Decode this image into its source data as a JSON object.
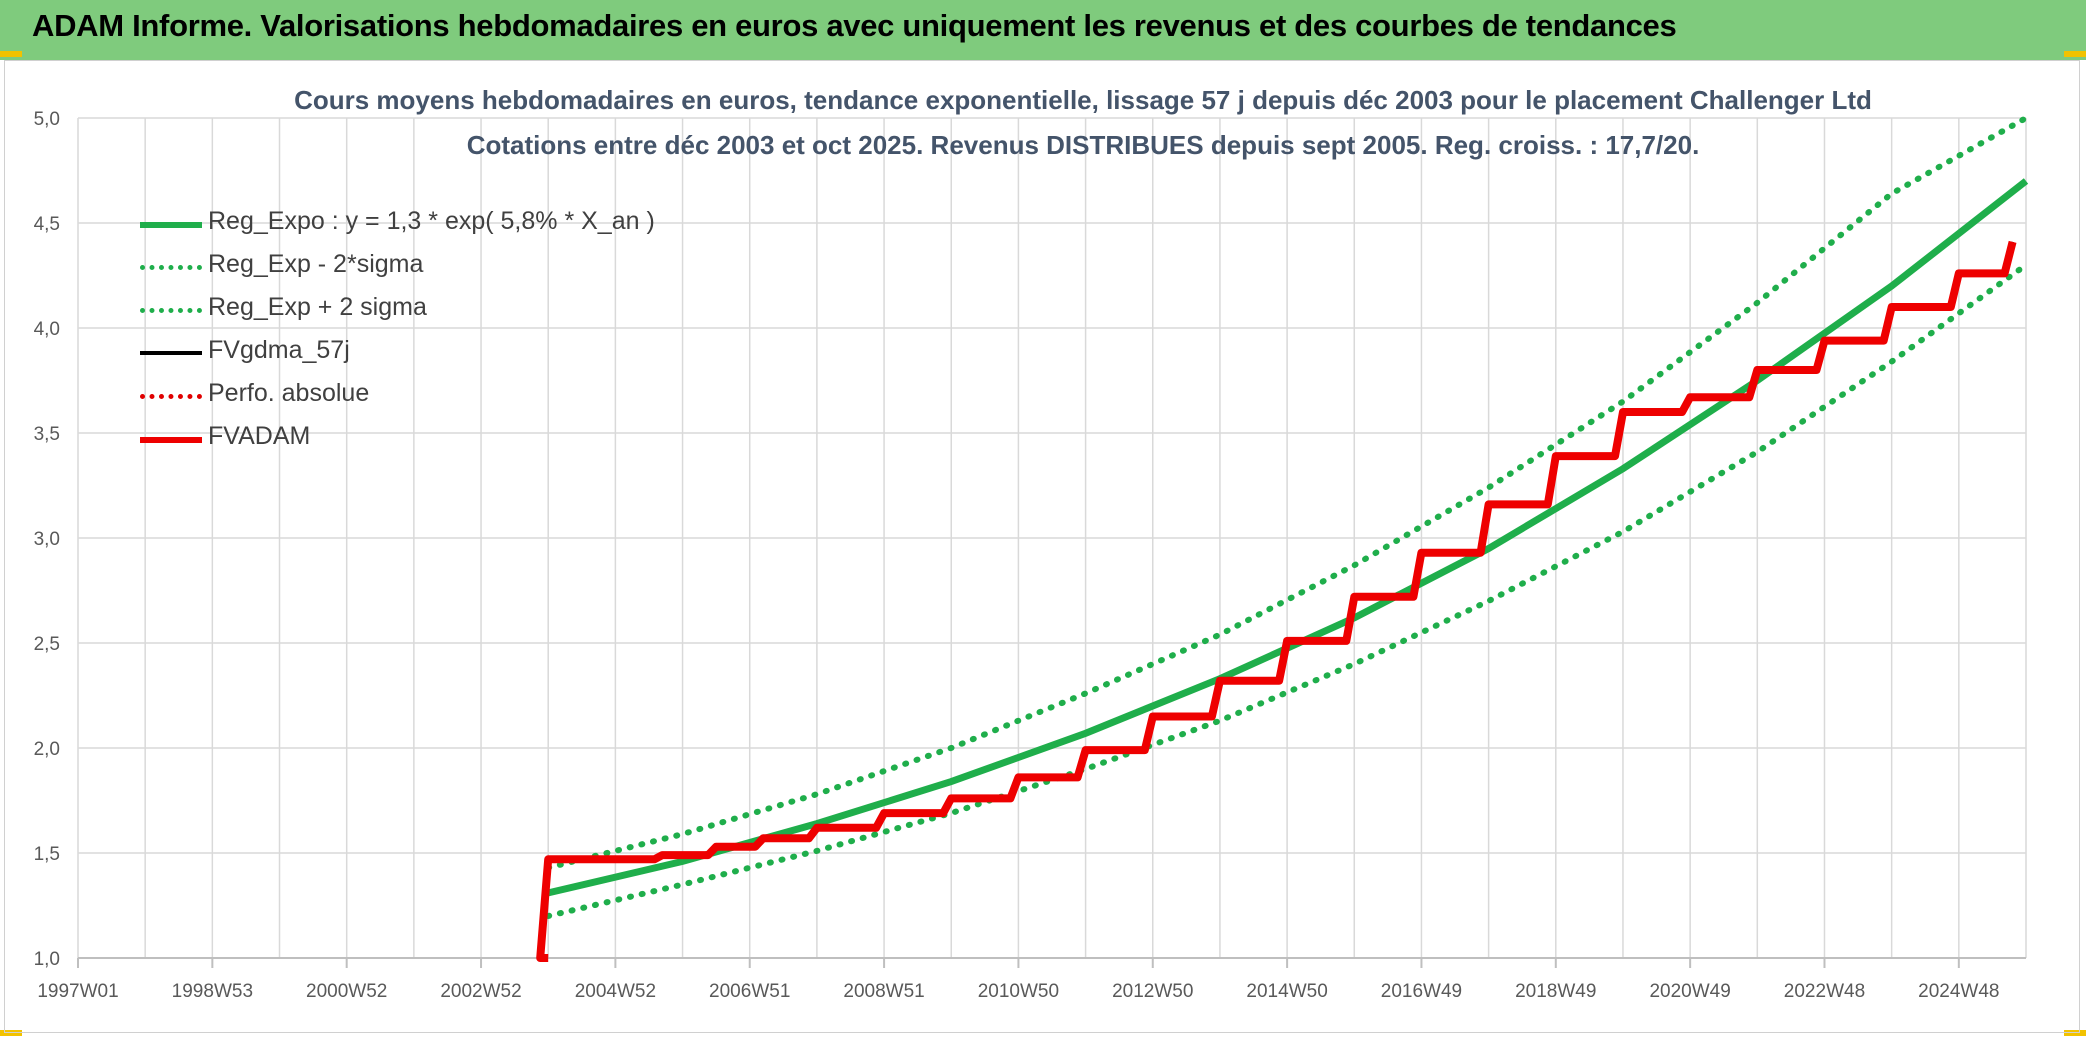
{
  "banner": {
    "title": "ADAM Informe. Valorisations hebdomadaires en euros avec uniquement les revenus et des courbes de tendances"
  },
  "chart_title": {
    "line1": "Cours moyens hebdomadaires en euros, tendance exponentielle, lissage 57 j depuis déc 2003 pour le placement Challenger Ltd",
    "line2": "Cotations entre déc 2003 et oct 2025. Revenus DISTRIBUES depuis sept 2005. Reg. croiss. : 17,7/20."
  },
  "legend": [
    {
      "label": "Reg_Expo : y = 1,3 * exp( 5,8% *  X_an )",
      "color": "#1fae4b",
      "style": "solid-thick"
    },
    {
      "label": "Reg_Exp - 2*sigma",
      "color": "#1fae4b",
      "style": "dotted"
    },
    {
      "label": "Reg_Exp + 2 sigma",
      "color": "#1fae4b",
      "style": "dotted"
    },
    {
      "label": "FVgdma_57j",
      "color": "#000000",
      "style": "solid"
    },
    {
      "label": "Perfo. absolue",
      "color": "#e00000",
      "style": "dotted"
    },
    {
      "label": "FVADAM",
      "color": "#ee0000",
      "style": "solid-thick"
    }
  ],
  "chart_data": {
    "type": "line",
    "xlim": [
      1997.0,
      2026.0
    ],
    "ylim": [
      1.0,
      5.0
    ],
    "y_ticks": [
      "1,0",
      "1,5",
      "2,0",
      "2,5",
      "3,0",
      "3,5",
      "4,0",
      "4,5",
      "5,0"
    ],
    "x_ticks": [
      {
        "x": 1997.0,
        "label": "1997W01"
      },
      {
        "x": 1999.0,
        "label": "1998W53"
      },
      {
        "x": 2001.0,
        "label": "2000W52"
      },
      {
        "x": 2003.0,
        "label": "2002W52"
      },
      {
        "x": 2005.0,
        "label": "2004W52"
      },
      {
        "x": 2007.0,
        "label": "2006W51"
      },
      {
        "x": 2009.0,
        "label": "2008W51"
      },
      {
        "x": 2011.0,
        "label": "2010W50"
      },
      {
        "x": 2013.0,
        "label": "2012W50"
      },
      {
        "x": 2015.0,
        "label": "2014W50"
      },
      {
        "x": 2017.0,
        "label": "2016W49"
      },
      {
        "x": 2019.0,
        "label": "2018W49"
      },
      {
        "x": 2021.0,
        "label": "2020W49"
      },
      {
        "x": 2023.0,
        "label": "2022W48"
      },
      {
        "x": 2025.0,
        "label": "2024W48"
      }
    ],
    "grid": true,
    "legend_position": "top-left",
    "series": [
      {
        "name": "Reg_Expo : y = 1,3 * exp( 5,8% *  X_an )",
        "color": "#1fae4b",
        "x": [
          2004.0,
          2006.0,
          2008.0,
          2010.0,
          2012.0,
          2014.0,
          2016.0,
          2018.0,
          2020.0,
          2022.0,
          2024.0,
          2026.0
        ],
        "y": [
          1.31,
          1.46,
          1.64,
          1.84,
          2.07,
          2.33,
          2.62,
          2.95,
          3.33,
          3.75,
          4.2,
          4.7
        ]
      },
      {
        "name": "Reg_Exp - 2*sigma",
        "color": "#1fae4b",
        "x": [
          2004.0,
          2006.0,
          2008.0,
          2010.0,
          2012.0,
          2014.0,
          2016.0,
          2018.0,
          2020.0,
          2022.0,
          2024.0,
          2026.0
        ],
        "y": [
          1.2,
          1.35,
          1.51,
          1.69,
          1.9,
          2.13,
          2.4,
          2.7,
          3.03,
          3.41,
          3.84,
          4.3
        ]
      },
      {
        "name": "Reg_Exp + 2 sigma",
        "color": "#1fae4b",
        "x": [
          2004.0,
          2006.0,
          2008.0,
          2010.0,
          2012.0,
          2014.0,
          2016.0,
          2018.0,
          2020.0,
          2022.0,
          2024.0,
          2026.0
        ],
        "y": [
          1.43,
          1.59,
          1.78,
          2.0,
          2.26,
          2.54,
          2.87,
          3.24,
          3.65,
          4.12,
          4.64,
          5.0
        ]
      },
      {
        "name": "FVgdma_57j",
        "color": "#000000",
        "x": [
          2004.0,
          2005.0,
          2005.7,
          2006.5,
          2007.2,
          2008.0,
          2009.0,
          2010.0,
          2011.0,
          2012.0,
          2013.0,
          2014.0,
          2015.0,
          2016.0,
          2017.0,
          2018.0,
          2019.0,
          2020.0,
          2021.0,
          2022.0,
          2023.0,
          2024.0,
          2025.0,
          2025.8
        ],
        "y": [
          1.47,
          1.47,
          1.49,
          1.53,
          1.57,
          1.62,
          1.69,
          1.76,
          1.86,
          1.99,
          2.15,
          2.32,
          2.51,
          2.72,
          2.93,
          3.16,
          3.39,
          3.6,
          3.67,
          3.8,
          3.94,
          4.1,
          4.26,
          4.41
        ]
      },
      {
        "name": "Perfo. absolue",
        "color": "#e00000",
        "x": [
          2004.0,
          2005.0,
          2005.7,
          2006.5,
          2007.2,
          2008.0,
          2009.0,
          2010.0,
          2011.0,
          2012.0,
          2013.0,
          2014.0,
          2015.0,
          2016.0,
          2017.0,
          2018.0,
          2019.0,
          2020.0,
          2021.0,
          2022.0,
          2023.0,
          2024.0,
          2025.0,
          2025.8
        ],
        "y": [
          1.47,
          1.47,
          1.49,
          1.53,
          1.57,
          1.62,
          1.69,
          1.76,
          1.86,
          1.99,
          2.15,
          2.32,
          2.51,
          2.72,
          2.93,
          3.16,
          3.39,
          3.6,
          3.67,
          3.8,
          3.94,
          4.1,
          4.26,
          4.41
        ]
      },
      {
        "name": "FVADAM",
        "color": "#ee0000",
        "x": [
          2004.0,
          2004.0,
          2005.7,
          2006.5,
          2007.2,
          2008.0,
          2009.0,
          2010.0,
          2011.0,
          2012.0,
          2013.0,
          2014.0,
          2015.0,
          2016.0,
          2017.0,
          2018.0,
          2019.0,
          2020.0,
          2021.0,
          2022.0,
          2023.0,
          2024.0,
          2025.0,
          2025.8
        ],
        "y": [
          1.0,
          1.47,
          1.49,
          1.53,
          1.57,
          1.62,
          1.69,
          1.76,
          1.86,
          1.99,
          2.15,
          2.32,
          2.51,
          2.72,
          2.93,
          3.16,
          3.39,
          3.6,
          3.67,
          3.8,
          3.94,
          4.1,
          4.26,
          4.41
        ]
      }
    ]
  }
}
